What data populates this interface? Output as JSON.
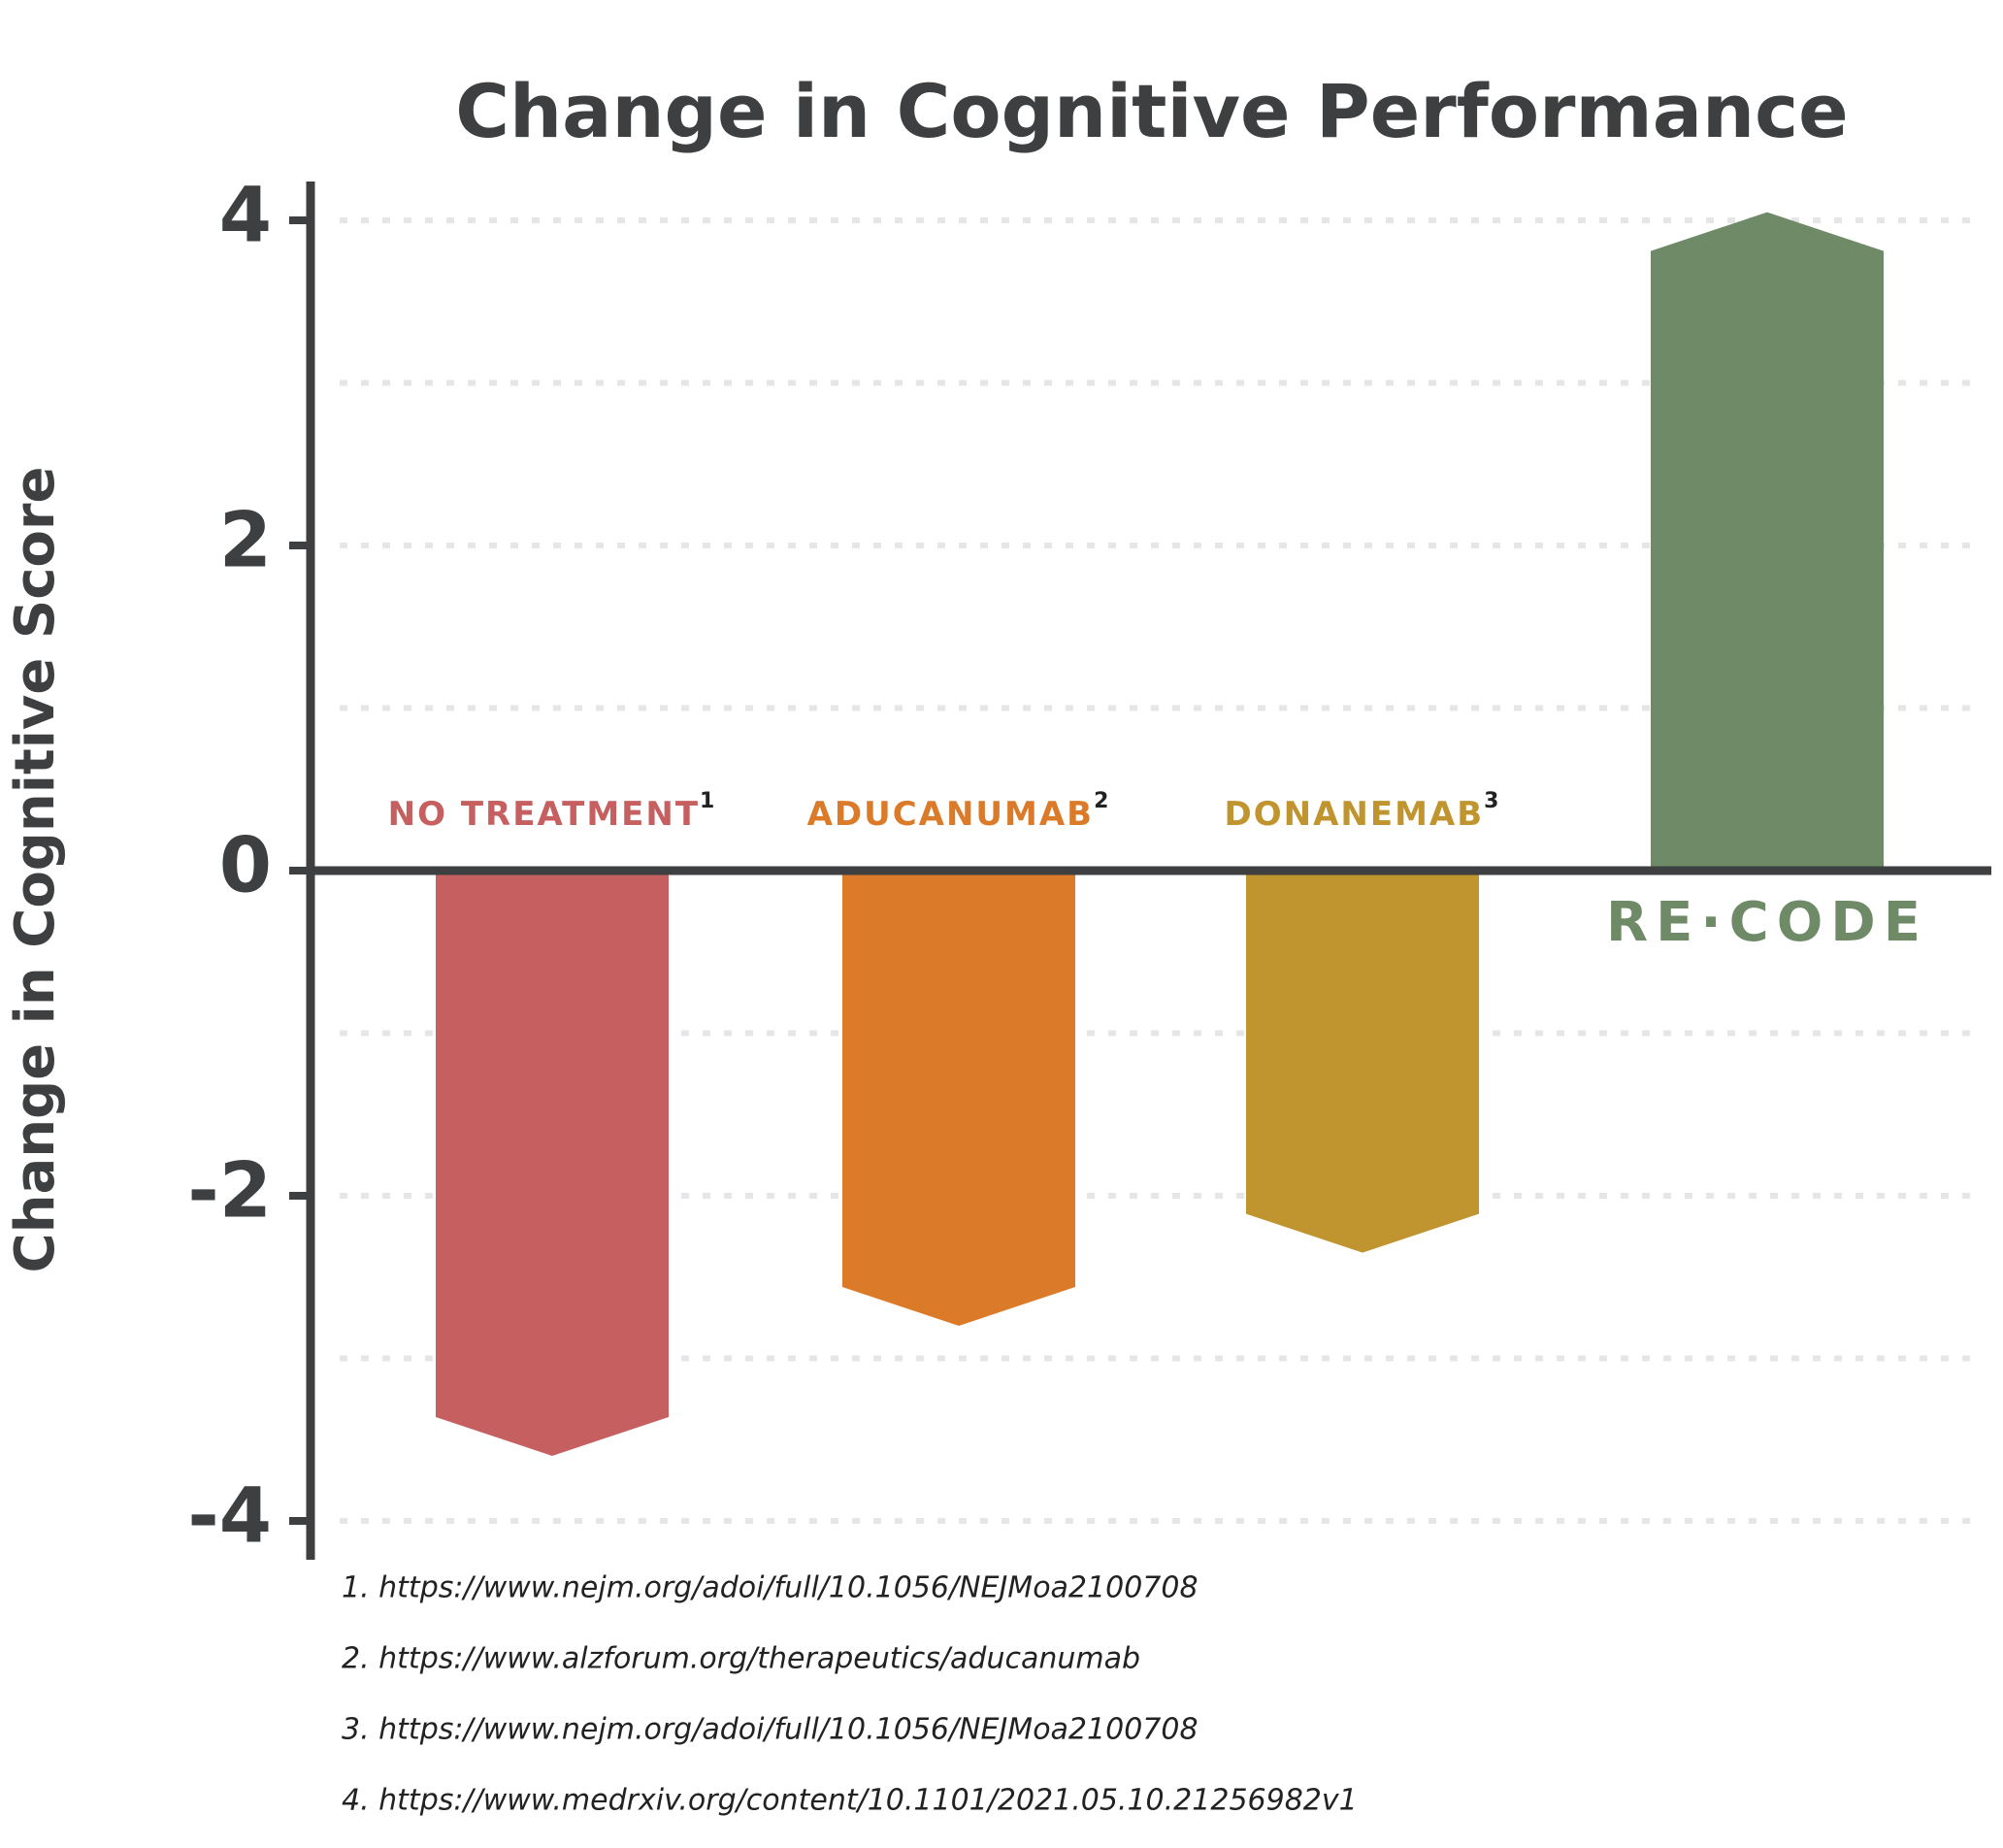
{
  "chart_data": {
    "type": "bar",
    "title": "Change in Cognitive Performance",
    "y_label": "Change in Cognitive Score",
    "categories": [
      "NO TREATMENT",
      "ADUCANUMAB",
      "DONANEMAB",
      "RE·CODE"
    ],
    "category_refs": [
      "1",
      "2",
      "3",
      null
    ],
    "values": [
      -3.6,
      -2.8,
      -2.35,
      4.05
    ],
    "colors": [
      "#c66060",
      "#db7b2a",
      "#c0942e",
      "#6f8a66"
    ],
    "ylim": [
      -4,
      4
    ],
    "yticks": [
      -4,
      -2,
      0,
      2,
      4
    ],
    "minor_gridlines": [
      -3,
      -1,
      1,
      3
    ],
    "grid": true,
    "footnotes": [
      "1. https://www.nejm.org/adoi/full/10.1056/NEJMoa2100708",
      "2. https://www.alzforum.org/therapeutics/aducanumab",
      "3. https://www.nejm.org/adoi/full/10.1056/NEJMoa2100708",
      "4. https://www.medrxiv.org/content/10.1101/2021.05.10.21256982v1"
    ]
  }
}
